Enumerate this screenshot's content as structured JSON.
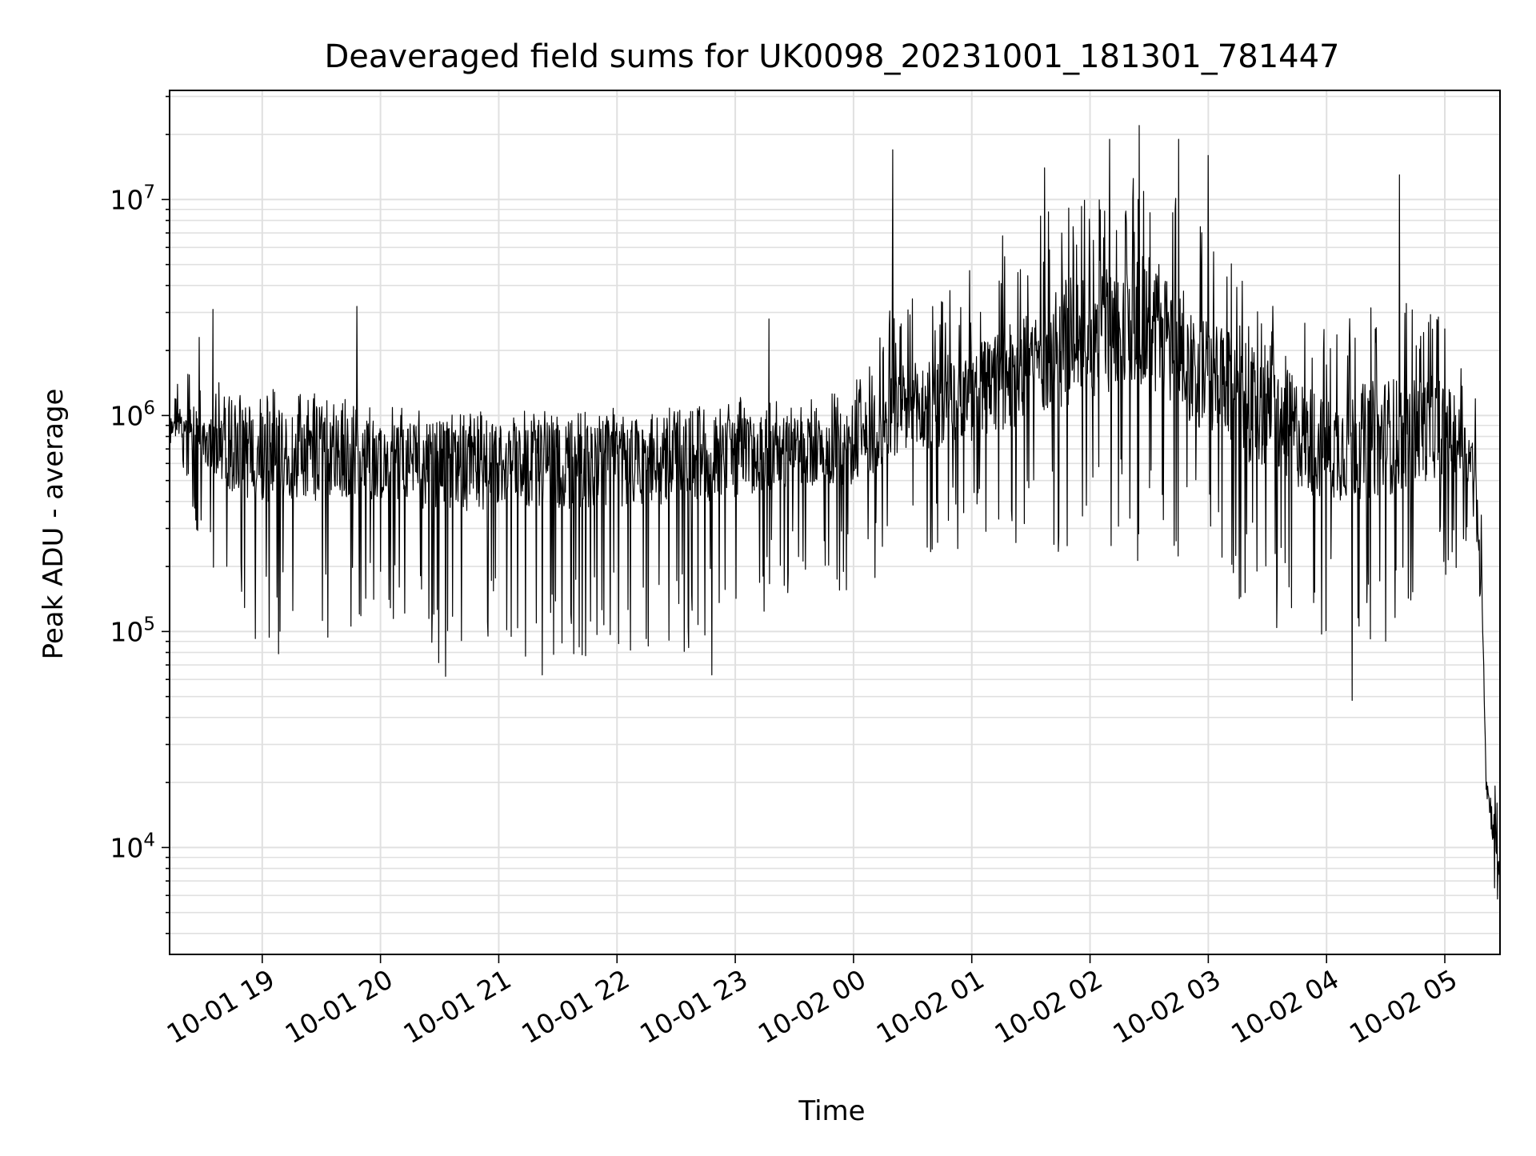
{
  "chart_data": {
    "type": "line",
    "title": "Deaveraged field sums for UK0098_20231001_181301_781447",
    "xlabel": "Time",
    "ylabel": "Peak ADU - average",
    "y_scale": "log",
    "ylim": [
      3200,
      32000000
    ],
    "xlim": [
      "2023-10-01 18:13",
      "2023-10-02 05:28"
    ],
    "grid": true,
    "line_color": "#000000",
    "grid_color": "#e0e0e0",
    "x_ticks": [
      {
        "label": "10-01 19",
        "time": "2023-10-01 19:00"
      },
      {
        "label": "10-01 20",
        "time": "2023-10-01 20:00"
      },
      {
        "label": "10-01 21",
        "time": "2023-10-01 21:00"
      },
      {
        "label": "10-01 22",
        "time": "2023-10-01 22:00"
      },
      {
        "label": "10-01 23",
        "time": "2023-10-01 23:00"
      },
      {
        "label": "10-02 00",
        "time": "2023-10-02 00:00"
      },
      {
        "label": "10-02 01",
        "time": "2023-10-02 01:00"
      },
      {
        "label": "10-02 02",
        "time": "2023-10-02 02:00"
      },
      {
        "label": "10-02 03",
        "time": "2023-10-02 03:00"
      },
      {
        "label": "10-02 04",
        "time": "2023-10-02 04:00"
      },
      {
        "label": "10-02 05",
        "time": "2023-10-02 05:00"
      }
    ],
    "y_ticks": [
      {
        "base": "10",
        "exp": "4",
        "value": 10000
      },
      {
        "base": "10",
        "exp": "5",
        "value": 100000
      },
      {
        "base": "10",
        "exp": "6",
        "value": 1000000
      },
      {
        "base": "10",
        "exp": "7",
        "value": 10000000
      }
    ],
    "series": [
      {
        "envelope": [
          {
            "time": "2023-10-01 18:13",
            "typical": 900000,
            "high": 1200000,
            "low": 650000
          },
          {
            "time": "2023-10-01 18:20",
            "typical": 950000,
            "high": 1600000,
            "low": 550000
          },
          {
            "time": "2023-10-01 18:30",
            "typical": 800000,
            "high": 1500000,
            "low": 220000
          },
          {
            "time": "2023-10-01 18:45",
            "typical": 700000,
            "high": 1450000,
            "low": 110000
          },
          {
            "time": "2023-10-01 19:00",
            "typical": 650000,
            "high": 1400000,
            "low": 75000
          },
          {
            "time": "2023-10-01 19:20",
            "typical": 650000,
            "high": 1300000,
            "low": 80000
          },
          {
            "time": "2023-10-01 19:40",
            "typical": 650000,
            "high": 1200000,
            "low": 85000
          },
          {
            "time": "2023-10-01 20:00",
            "typical": 600000,
            "high": 1100000,
            "low": 110000
          },
          {
            "time": "2023-10-01 20:30",
            "typical": 580000,
            "high": 1050000,
            "low": 65000
          },
          {
            "time": "2023-10-01 21:00",
            "typical": 580000,
            "high": 1050000,
            "low": 80000
          },
          {
            "time": "2023-10-01 21:30",
            "typical": 590000,
            "high": 1050000,
            "low": 70000
          },
          {
            "time": "2023-10-01 22:00",
            "typical": 600000,
            "high": 1100000,
            "low": 80000
          },
          {
            "time": "2023-10-01 22:30",
            "typical": 620000,
            "high": 1100000,
            "low": 70000
          },
          {
            "time": "2023-10-01 23:00",
            "typical": 650000,
            "high": 1250000,
            "low": 100000
          },
          {
            "time": "2023-10-01 23:30",
            "typical": 680000,
            "high": 1150000,
            "low": 150000
          },
          {
            "time": "2023-10-02 00:00",
            "typical": 700000,
            "high": 1400000,
            "low": 150000
          },
          {
            "time": "2023-10-02 00:20",
            "typical": 1000000,
            "high": 3500000,
            "low": 200000
          },
          {
            "time": "2023-10-02 00:40",
            "typical": 1100000,
            "high": 4000000,
            "low": 200000
          },
          {
            "time": "2023-10-02 01:00",
            "typical": 1200000,
            "high": 5000000,
            "low": 250000
          },
          {
            "time": "2023-10-02 01:30",
            "typical": 1800000,
            "high": 9000000,
            "low": 250000
          },
          {
            "time": "2023-10-02 02:00",
            "typical": 2500000,
            "high": 12000000,
            "low": 200000
          },
          {
            "time": "2023-10-02 02:30",
            "typical": 2800000,
            "high": 15000000,
            "low": 200000
          },
          {
            "time": "2023-10-02 03:00",
            "typical": 1500000,
            "high": 7000000,
            "low": 200000
          },
          {
            "time": "2023-10-02 03:30",
            "typical": 1000000,
            "high": 3500000,
            "low": 100000
          },
          {
            "time": "2023-10-02 04:00",
            "typical": 700000,
            "high": 2500000,
            "low": 90000
          },
          {
            "time": "2023-10-02 04:30",
            "typical": 800000,
            "high": 3500000,
            "low": 90000
          },
          {
            "time": "2023-10-02 05:00",
            "typical": 900000,
            "high": 3000000,
            "low": 150000
          },
          {
            "time": "2023-10-02 05:15",
            "typical": 600000,
            "high": 1500000,
            "low": 300000
          },
          {
            "time": "2023-10-02 05:19",
            "typical": 150000,
            "high": 300000,
            "low": 100000
          },
          {
            "time": "2023-10-02 05:21",
            "typical": 20000,
            "high": 28000,
            "low": 14000
          },
          {
            "time": "2023-10-02 05:25",
            "typical": 12000,
            "high": 22000,
            "low": 6000
          },
          {
            "time": "2023-10-02 05:28",
            "typical": 8000,
            "high": 15000,
            "low": 4800
          }
        ],
        "peaks": [
          {
            "time": "2023-10-01 18:28",
            "value": 2300000
          },
          {
            "time": "2023-10-01 18:35",
            "value": 3100000
          },
          {
            "time": "2023-10-01 19:48",
            "value": 3200000
          },
          {
            "time": "2023-10-01 20:33",
            "value": 62000
          },
          {
            "time": "2023-10-01 21:22",
            "value": 63000
          },
          {
            "time": "2023-10-01 22:48",
            "value": 63000
          },
          {
            "time": "2023-10-01 23:17",
            "value": 2800000
          },
          {
            "time": "2023-10-02 00:20",
            "value": 17000000
          },
          {
            "time": "2023-10-02 01:37",
            "value": 14000000
          },
          {
            "time": "2023-10-02 02:10",
            "value": 19000000
          },
          {
            "time": "2023-10-02 02:25",
            "value": 22000000
          },
          {
            "time": "2023-10-02 02:45",
            "value": 19000000
          },
          {
            "time": "2023-10-02 03:00",
            "value": 16000000
          },
          {
            "time": "2023-10-02 04:13",
            "value": 48000
          },
          {
            "time": "2023-10-02 04:37",
            "value": 13000000
          },
          {
            "time": "2023-10-02 05:28",
            "value": 4700
          }
        ]
      }
    ]
  }
}
